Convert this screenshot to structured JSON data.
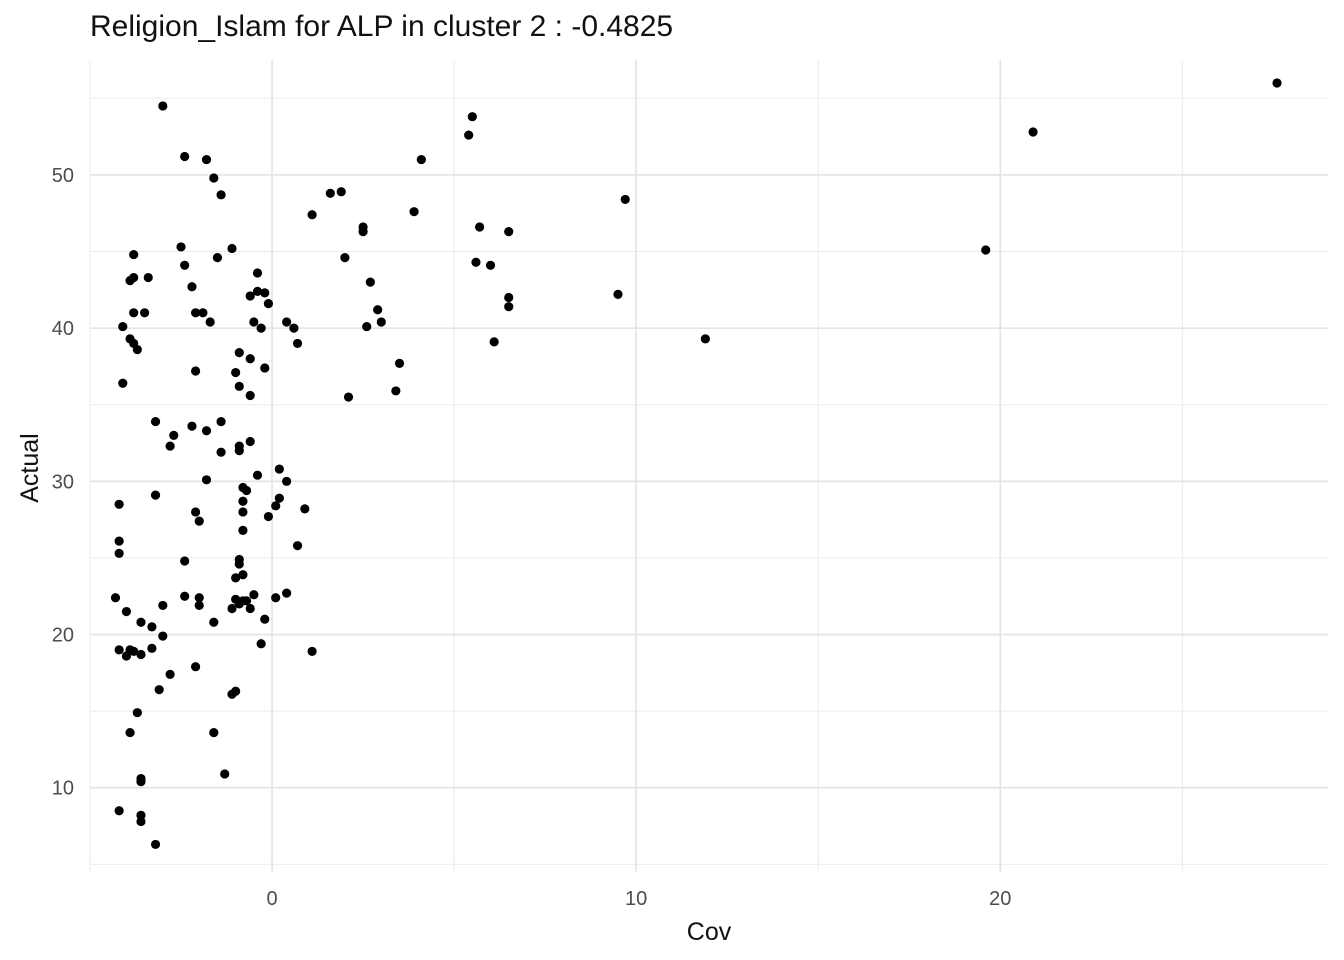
{
  "chart_data": {
    "type": "scatter",
    "title": "Religion_Islam for ALP in cluster 2 : -0.4825",
    "xlabel": "Cov",
    "ylabel": "Actual",
    "xlim": [
      -5,
      29
    ],
    "ylim": [
      4.5,
      57.5
    ],
    "x_ticks": [
      0,
      10,
      20
    ],
    "x_tick_labels": [
      "0",
      "10",
      "20"
    ],
    "y_ticks": [
      10,
      20,
      30,
      40,
      50
    ],
    "y_tick_labels": [
      "10",
      "20",
      "30",
      "40",
      "50"
    ],
    "grid": true,
    "legend": "none",
    "point_color": "#000000",
    "points": [
      {
        "x": -3.0,
        "y": 54.5
      },
      {
        "x": -2.4,
        "y": 51.2
      },
      {
        "x": -1.8,
        "y": 51.0
      },
      {
        "x": -1.6,
        "y": 49.8
      },
      {
        "x": -1.4,
        "y": 48.7
      },
      {
        "x": -2.5,
        "y": 45.3
      },
      {
        "x": -1.5,
        "y": 44.6
      },
      {
        "x": -1.1,
        "y": 45.2
      },
      {
        "x": -3.8,
        "y": 44.8
      },
      {
        "x": -2.4,
        "y": 44.1
      },
      {
        "x": -0.4,
        "y": 43.6
      },
      {
        "x": -3.8,
        "y": 43.3
      },
      {
        "x": -3.9,
        "y": 43.1
      },
      {
        "x": -3.4,
        "y": 43.3
      },
      {
        "x": -2.2,
        "y": 42.7
      },
      {
        "x": -0.6,
        "y": 42.1
      },
      {
        "x": -0.4,
        "y": 42.4
      },
      {
        "x": -0.2,
        "y": 42.3
      },
      {
        "x": -0.1,
        "y": 41.6
      },
      {
        "x": -3.8,
        "y": 41.0
      },
      {
        "x": -3.5,
        "y": 41.0
      },
      {
        "x": -2.1,
        "y": 41.0
      },
      {
        "x": -1.9,
        "y": 41.0
      },
      {
        "x": -1.7,
        "y": 40.4
      },
      {
        "x": -0.5,
        "y": 40.4
      },
      {
        "x": -0.3,
        "y": 40.0
      },
      {
        "x": 0.4,
        "y": 40.4
      },
      {
        "x": 0.6,
        "y": 40.0
      },
      {
        "x": -4.1,
        "y": 40.1
      },
      {
        "x": -3.9,
        "y": 39.3
      },
      {
        "x": -3.8,
        "y": 39.0
      },
      {
        "x": -3.7,
        "y": 38.6
      },
      {
        "x": 0.7,
        "y": 39.0
      },
      {
        "x": -0.9,
        "y": 38.4
      },
      {
        "x": -0.6,
        "y": 38.0
      },
      {
        "x": -0.2,
        "y": 37.4
      },
      {
        "x": -2.1,
        "y": 37.2
      },
      {
        "x": -1.0,
        "y": 37.1
      },
      {
        "x": -4.1,
        "y": 36.4
      },
      {
        "x": -0.9,
        "y": 36.2
      },
      {
        "x": -0.6,
        "y": 35.6
      },
      {
        "x": -3.2,
        "y": 33.9
      },
      {
        "x": -1.4,
        "y": 33.9
      },
      {
        "x": -2.2,
        "y": 33.6
      },
      {
        "x": -1.8,
        "y": 33.3
      },
      {
        "x": -2.7,
        "y": 33.0
      },
      {
        "x": -0.6,
        "y": 32.6
      },
      {
        "x": -0.9,
        "y": 32.3
      },
      {
        "x": -2.8,
        "y": 32.3
      },
      {
        "x": -0.9,
        "y": 32.0
      },
      {
        "x": -1.4,
        "y": 31.9
      },
      {
        "x": 0.2,
        "y": 30.8
      },
      {
        "x": -0.4,
        "y": 30.4
      },
      {
        "x": 0.4,
        "y": 30.0
      },
      {
        "x": -1.8,
        "y": 30.1
      },
      {
        "x": -0.8,
        "y": 29.6
      },
      {
        "x": -0.7,
        "y": 29.4
      },
      {
        "x": -3.2,
        "y": 29.1
      },
      {
        "x": 0.2,
        "y": 28.9
      },
      {
        "x": -0.8,
        "y": 28.7
      },
      {
        "x": -4.2,
        "y": 28.5
      },
      {
        "x": 0.1,
        "y": 28.4
      },
      {
        "x": 0.9,
        "y": 28.2
      },
      {
        "x": -0.8,
        "y": 28.0
      },
      {
        "x": -2.1,
        "y": 28.0
      },
      {
        "x": -2.0,
        "y": 27.4
      },
      {
        "x": -0.1,
        "y": 27.7
      },
      {
        "x": -0.8,
        "y": 26.8
      },
      {
        "x": -4.2,
        "y": 26.1
      },
      {
        "x": 0.7,
        "y": 25.8
      },
      {
        "x": -4.2,
        "y": 25.3
      },
      {
        "x": -0.9,
        "y": 24.9
      },
      {
        "x": -0.9,
        "y": 24.6
      },
      {
        "x": -2.4,
        "y": 24.8
      },
      {
        "x": -0.8,
        "y": 23.9
      },
      {
        "x": -1.0,
        "y": 23.7
      },
      {
        "x": 0.4,
        "y": 22.7
      },
      {
        "x": -0.5,
        "y": 22.6
      },
      {
        "x": -4.3,
        "y": 22.4
      },
      {
        "x": -2.4,
        "y": 22.5
      },
      {
        "x": -2.0,
        "y": 22.4
      },
      {
        "x": 0.1,
        "y": 22.4
      },
      {
        "x": -1.0,
        "y": 22.3
      },
      {
        "x": -0.7,
        "y": 22.2
      },
      {
        "x": -0.8,
        "y": 22.2
      },
      {
        "x": -0.9,
        "y": 22.0
      },
      {
        "x": -3.0,
        "y": 21.9
      },
      {
        "x": -2.0,
        "y": 21.9
      },
      {
        "x": -1.1,
        "y": 21.7
      },
      {
        "x": -0.6,
        "y": 21.7
      },
      {
        "x": -4.0,
        "y": 21.5
      },
      {
        "x": -0.2,
        "y": 21.0
      },
      {
        "x": -3.6,
        "y": 20.8
      },
      {
        "x": -1.6,
        "y": 20.8
      },
      {
        "x": -3.3,
        "y": 20.5
      },
      {
        "x": -3.0,
        "y": 19.9
      },
      {
        "x": -0.3,
        "y": 19.4
      },
      {
        "x": -4.2,
        "y": 19.0
      },
      {
        "x": -3.9,
        "y": 19.0
      },
      {
        "x": -3.3,
        "y": 19.1
      },
      {
        "x": 1.1,
        "y": 18.9
      },
      {
        "x": -4.0,
        "y": 18.6
      },
      {
        "x": -3.6,
        "y": 18.7
      },
      {
        "x": -3.8,
        "y": 18.9
      },
      {
        "x": -2.1,
        "y": 17.9
      },
      {
        "x": -2.8,
        "y": 17.4
      },
      {
        "x": -3.1,
        "y": 16.4
      },
      {
        "x": -1.0,
        "y": 16.3
      },
      {
        "x": -1.1,
        "y": 16.1
      },
      {
        "x": -3.7,
        "y": 14.9
      },
      {
        "x": -3.9,
        "y": 13.6
      },
      {
        "x": -1.6,
        "y": 13.6
      },
      {
        "x": -1.3,
        "y": 10.9
      },
      {
        "x": -3.6,
        "y": 10.6
      },
      {
        "x": -3.6,
        "y": 10.4
      },
      {
        "x": -4.2,
        "y": 8.5
      },
      {
        "x": -3.6,
        "y": 8.2
      },
      {
        "x": -3.6,
        "y": 7.8
      },
      {
        "x": -3.2,
        "y": 6.3
      },
      {
        "x": 1.1,
        "y": 47.4
      },
      {
        "x": 1.6,
        "y": 48.8
      },
      {
        "x": 1.9,
        "y": 48.9
      },
      {
        "x": 2.0,
        "y": 44.6
      },
      {
        "x": 2.5,
        "y": 46.6
      },
      {
        "x": 2.5,
        "y": 46.3
      },
      {
        "x": 2.7,
        "y": 43.0
      },
      {
        "x": 2.9,
        "y": 41.2
      },
      {
        "x": 3.0,
        "y": 40.4
      },
      {
        "x": 2.6,
        "y": 40.1
      },
      {
        "x": 3.5,
        "y": 37.7
      },
      {
        "x": 3.4,
        "y": 35.9
      },
      {
        "x": 2.1,
        "y": 35.5
      },
      {
        "x": 3.9,
        "y": 47.6
      },
      {
        "x": 4.1,
        "y": 51.0
      },
      {
        "x": 5.4,
        "y": 52.6
      },
      {
        "x": 5.5,
        "y": 53.8
      },
      {
        "x": 5.7,
        "y": 46.6
      },
      {
        "x": 5.6,
        "y": 44.3
      },
      {
        "x": 6.0,
        "y": 44.1
      },
      {
        "x": 6.5,
        "y": 46.3
      },
      {
        "x": 6.5,
        "y": 42.0
      },
      {
        "x": 6.5,
        "y": 41.4
      },
      {
        "x": 6.1,
        "y": 39.1
      },
      {
        "x": 9.7,
        "y": 48.4
      },
      {
        "x": 9.5,
        "y": 42.2
      },
      {
        "x": 11.9,
        "y": 39.3
      },
      {
        "x": 19.6,
        "y": 45.1
      },
      {
        "x": 20.9,
        "y": 52.8
      },
      {
        "x": 27.6,
        "y": 56.0
      }
    ]
  }
}
